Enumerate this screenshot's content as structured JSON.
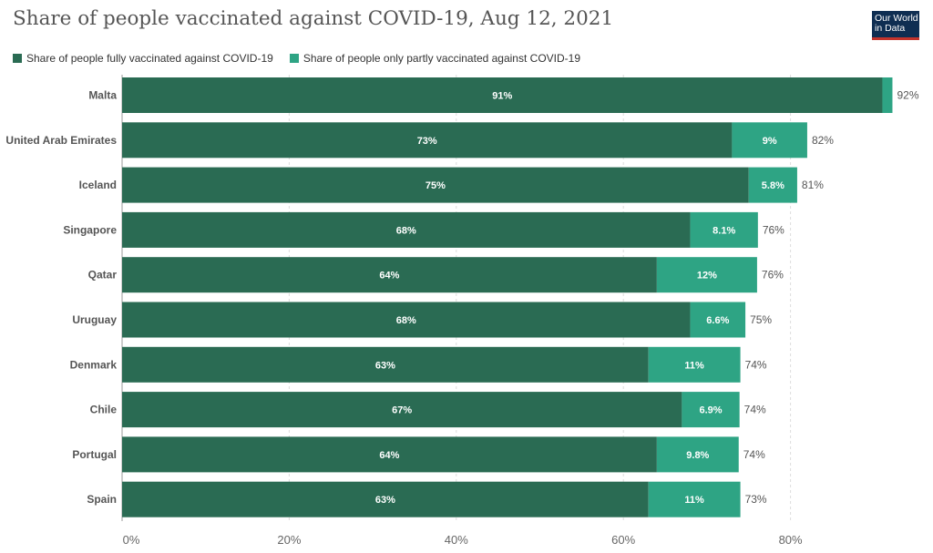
{
  "header": {
    "title": "Share of people vaccinated against COVID-19, Aug 12, 2021",
    "logo_line1": "Our World",
    "logo_line2": "in Data",
    "logo_bg": "#0f2e52",
    "logo_accent": "#c4342c"
  },
  "colors": {
    "fully": "#2a6b53",
    "partly": "#2ea484"
  },
  "chart_data": {
    "type": "bar",
    "orientation": "horizontal",
    "stacked": true,
    "categories": [
      "Malta",
      "United Arab Emirates",
      "Iceland",
      "Singapore",
      "Qatar",
      "Uruguay",
      "Denmark",
      "Chile",
      "Portugal",
      "Spain"
    ],
    "series": [
      {
        "name": "Share of people fully vaccinated against COVID-19",
        "values": [
          91,
          73,
          75,
          68,
          64,
          68,
          63,
          67,
          64,
          63
        ],
        "labels": [
          "91%",
          "73%",
          "75%",
          "68%",
          "64%",
          "68%",
          "63%",
          "67%",
          "64%",
          "63%"
        ]
      },
      {
        "name": "Share of people only partly vaccinated against COVID-19",
        "values": [
          1.2,
          9,
          5.8,
          8.1,
          12,
          6.6,
          11,
          6.9,
          9.8,
          11
        ],
        "labels": [
          "",
          "9%",
          "5.8%",
          "8.1%",
          "12%",
          "6.6%",
          "11%",
          "6.9%",
          "9.8%",
          "11%"
        ]
      }
    ],
    "totals": [
      "92%",
      "82%",
      "81%",
      "76%",
      "76%",
      "75%",
      "74%",
      "74%",
      "74%",
      "73%"
    ],
    "xlim": [
      0,
      92
    ],
    "xticks": [
      0,
      20,
      40,
      60,
      80
    ],
    "xtick_labels": [
      "0%",
      "20%",
      "40%",
      "60%",
      "80%"
    ],
    "grid": true,
    "legend_position": "top-left"
  }
}
